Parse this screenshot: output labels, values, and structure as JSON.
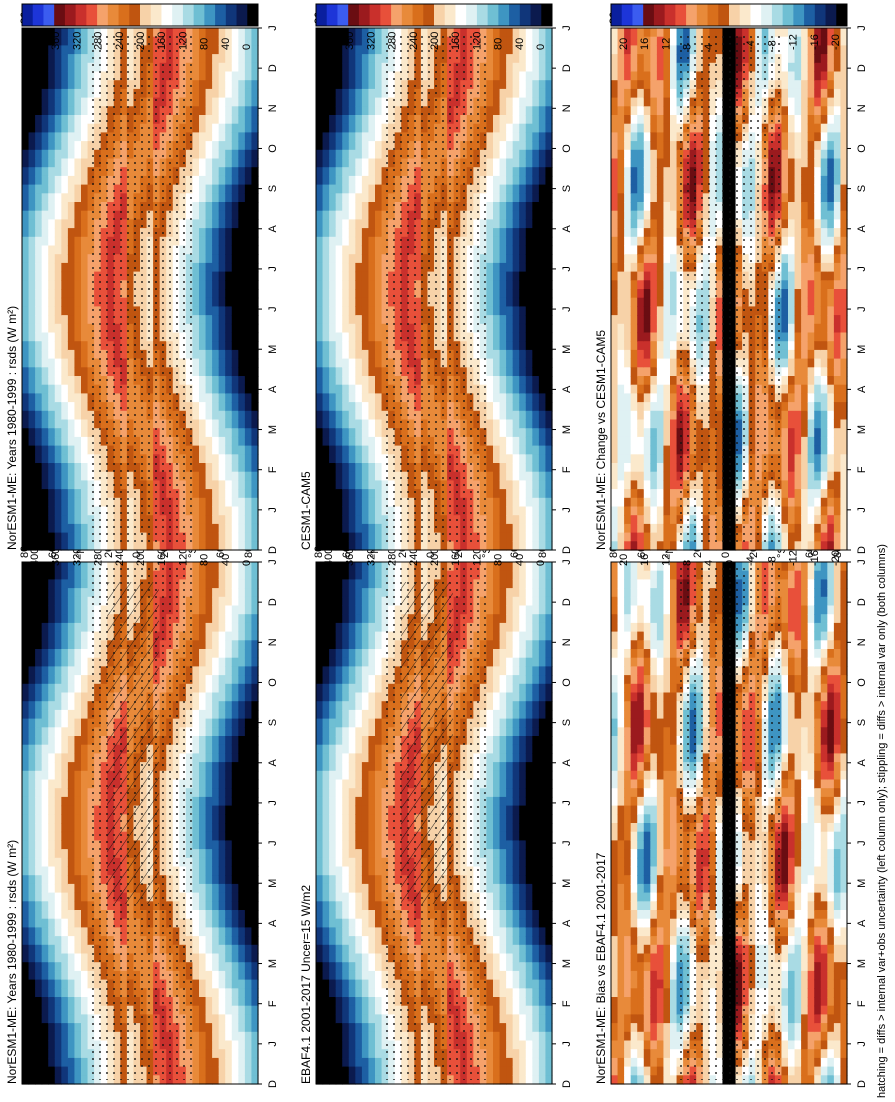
{
  "footnote": "hatching = diffs > internal var+obs uncertainty (left column only); stippling = diffs > internal var only (both columns)",
  "chart_data": [
    {
      "type": "heatmap",
      "title": "NorESM1-ME: Years 1980-1999 : rsds (W m²)",
      "months": [
        "D",
        "J",
        "F",
        "M",
        "A",
        "M",
        "J",
        "J",
        "A",
        "S",
        "O",
        "N",
        "D",
        "J"
      ],
      "lat_ticks": [
        "80",
        "60",
        "°N",
        "20",
        "0",
        "20",
        "°S",
        "60",
        "80"
      ],
      "colorbar_labels": [
        "400",
        "360",
        "320",
        "280",
        "240",
        "200",
        "160",
        "120",
        "80",
        "40",
        "0"
      ],
      "colorbar_colors": [
        "#0a1f9e",
        "#1d35d8",
        "#3b5cf0",
        "#6a0d12",
        "#9b1a1e",
        "#c9302c",
        "#e8503a",
        "#f5a26b",
        "#e88a3a",
        "#d96f1c",
        "#c05510",
        "#f7d2a8",
        "#fbe9cc",
        "#ffffff",
        "#dff1f3",
        "#a9dbe4",
        "#6fbfd3",
        "#3e95c2",
        "#1d5fa3",
        "#10367a",
        "#0b1a4e",
        "#000000"
      ],
      "zlim": [
        0,
        400
      ],
      "field": "mean",
      "hatching": true,
      "stippling": true
    },
    {
      "type": "heatmap",
      "title": "EBAF4.1 2001-2017 Uncer=15 W/m2",
      "months": [
        "D",
        "J",
        "F",
        "M",
        "A",
        "M",
        "J",
        "J",
        "A",
        "S",
        "O",
        "N",
        "D",
        "J"
      ],
      "lat_ticks": [
        "80",
        "60",
        "°N",
        "20",
        "0",
        "20",
        "°S",
        "60",
        "80"
      ],
      "colorbar_labels": [
        "400",
        "360",
        "320",
        "280",
        "240",
        "200",
        "160",
        "120",
        "80",
        "40",
        "0"
      ],
      "colorbar_colors": [
        "#0a1f9e",
        "#1d35d8",
        "#3b5cf0",
        "#6a0d12",
        "#9b1a1e",
        "#c9302c",
        "#e8503a",
        "#f5a26b",
        "#e88a3a",
        "#d96f1c",
        "#c05510",
        "#f7d2a8",
        "#fbe9cc",
        "#ffffff",
        "#dff1f3",
        "#a9dbe4",
        "#6fbfd3",
        "#3e95c2",
        "#1d5fa3",
        "#10367a",
        "#0b1a4e",
        "#000000"
      ],
      "zlim": [
        0,
        400
      ],
      "field": "mean",
      "hatching": true,
      "stippling": true
    },
    {
      "type": "heatmap",
      "title": "NorESM1-ME: Bias vs EBAF4.1 2001-2017",
      "months": [
        "D",
        "J",
        "F",
        "M",
        "A",
        "M",
        "J",
        "J",
        "A",
        "S",
        "O",
        "N",
        "D",
        "J"
      ],
      "lat_ticks": [
        "80",
        "60",
        "°N",
        "20",
        "0",
        "20",
        "°S",
        "60",
        "80"
      ],
      "colorbar_labels": [
        "20",
        "16",
        "12",
        "8",
        "4",
        "0",
        "-4",
        "-8",
        "-12",
        "-16",
        "-20"
      ],
      "colorbar_colors": [
        "#0a1f9e",
        "#1d35d8",
        "#3b5cf0",
        "#6a0d12",
        "#9b1a1e",
        "#c9302c",
        "#e8503a",
        "#f5a26b",
        "#e88a3a",
        "#d96f1c",
        "#c05510",
        "#f7d2a8",
        "#fbe9cc",
        "#ffffff",
        "#dff1f3",
        "#a9dbe4",
        "#6fbfd3",
        "#3e95c2",
        "#1d5fa3",
        "#10367a",
        "#0b1a4e",
        "#000000"
      ],
      "zlim": [
        -20,
        20
      ],
      "field": "diff",
      "hatching": false,
      "stippling": true
    },
    {
      "type": "heatmap",
      "title": "NorESM1-ME: Years 1980-1999 : rsds (W m²)",
      "months": [
        "D",
        "J",
        "F",
        "M",
        "A",
        "M",
        "J",
        "J",
        "A",
        "S",
        "O",
        "N",
        "D",
        "J"
      ],
      "lat_ticks": [
        "80",
        "60",
        "°N",
        "20",
        "0",
        "20",
        "°S",
        "60",
        "80"
      ],
      "colorbar_labels": [
        "400",
        "360",
        "320",
        "280",
        "240",
        "200",
        "160",
        "120",
        "80",
        "40",
        "0"
      ],
      "colorbar_colors": [
        "#0a1f9e",
        "#1d35d8",
        "#3b5cf0",
        "#6a0d12",
        "#9b1a1e",
        "#c9302c",
        "#e8503a",
        "#f5a26b",
        "#e88a3a",
        "#d96f1c",
        "#c05510",
        "#f7d2a8",
        "#fbe9cc",
        "#ffffff",
        "#dff1f3",
        "#a9dbe4",
        "#6fbfd3",
        "#3e95c2",
        "#1d5fa3",
        "#10367a",
        "#0b1a4e",
        "#000000"
      ],
      "zlim": [
        0,
        400
      ],
      "field": "mean",
      "hatching": false,
      "stippling": true
    },
    {
      "type": "heatmap",
      "title": "CESM1-CAM5",
      "months": [
        "D",
        "J",
        "F",
        "M",
        "A",
        "M",
        "J",
        "J",
        "A",
        "S",
        "O",
        "N",
        "D",
        "J"
      ],
      "lat_ticks": [
        "80",
        "60",
        "°N",
        "20",
        "0",
        "20",
        "°S",
        "60",
        "80"
      ],
      "colorbar_labels": [
        "400",
        "360",
        "320",
        "280",
        "240",
        "200",
        "160",
        "120",
        "80",
        "40",
        "0"
      ],
      "colorbar_colors": [
        "#0a1f9e",
        "#1d35d8",
        "#3b5cf0",
        "#6a0d12",
        "#9b1a1e",
        "#c9302c",
        "#e8503a",
        "#f5a26b",
        "#e88a3a",
        "#d96f1c",
        "#c05510",
        "#f7d2a8",
        "#fbe9cc",
        "#ffffff",
        "#dff1f3",
        "#a9dbe4",
        "#6fbfd3",
        "#3e95c2",
        "#1d5fa3",
        "#10367a",
        "#0b1a4e",
        "#000000"
      ],
      "zlim": [
        0,
        400
      ],
      "field": "mean",
      "hatching": false,
      "stippling": true
    },
    {
      "type": "heatmap",
      "title": "NorESM1-ME: Change vs CESM1-CAM5",
      "months": [
        "D",
        "J",
        "F",
        "M",
        "A",
        "M",
        "J",
        "J",
        "A",
        "S",
        "O",
        "N",
        "D",
        "J"
      ],
      "lat_ticks": [
        "80",
        "60",
        "°N",
        "20",
        "0",
        "20",
        "°S",
        "60",
        "80"
      ],
      "colorbar_labels": [
        "20",
        "16",
        "12",
        "8",
        "4",
        "0",
        "-4",
        "-8",
        "-12",
        "-16",
        "-20"
      ],
      "colorbar_colors": [
        "#0a1f9e",
        "#1d35d8",
        "#3b5cf0",
        "#6a0d12",
        "#9b1a1e",
        "#c9302c",
        "#e8503a",
        "#f5a26b",
        "#e88a3a",
        "#d96f1c",
        "#c05510",
        "#f7d2a8",
        "#fbe9cc",
        "#ffffff",
        "#dff1f3",
        "#a9dbe4",
        "#6fbfd3",
        "#3e95c2",
        "#1d5fa3",
        "#10367a",
        "#0b1a4e",
        "#000000"
      ],
      "zlim": [
        -20,
        20
      ],
      "field": "change",
      "hatching": false,
      "stippling": true
    }
  ]
}
